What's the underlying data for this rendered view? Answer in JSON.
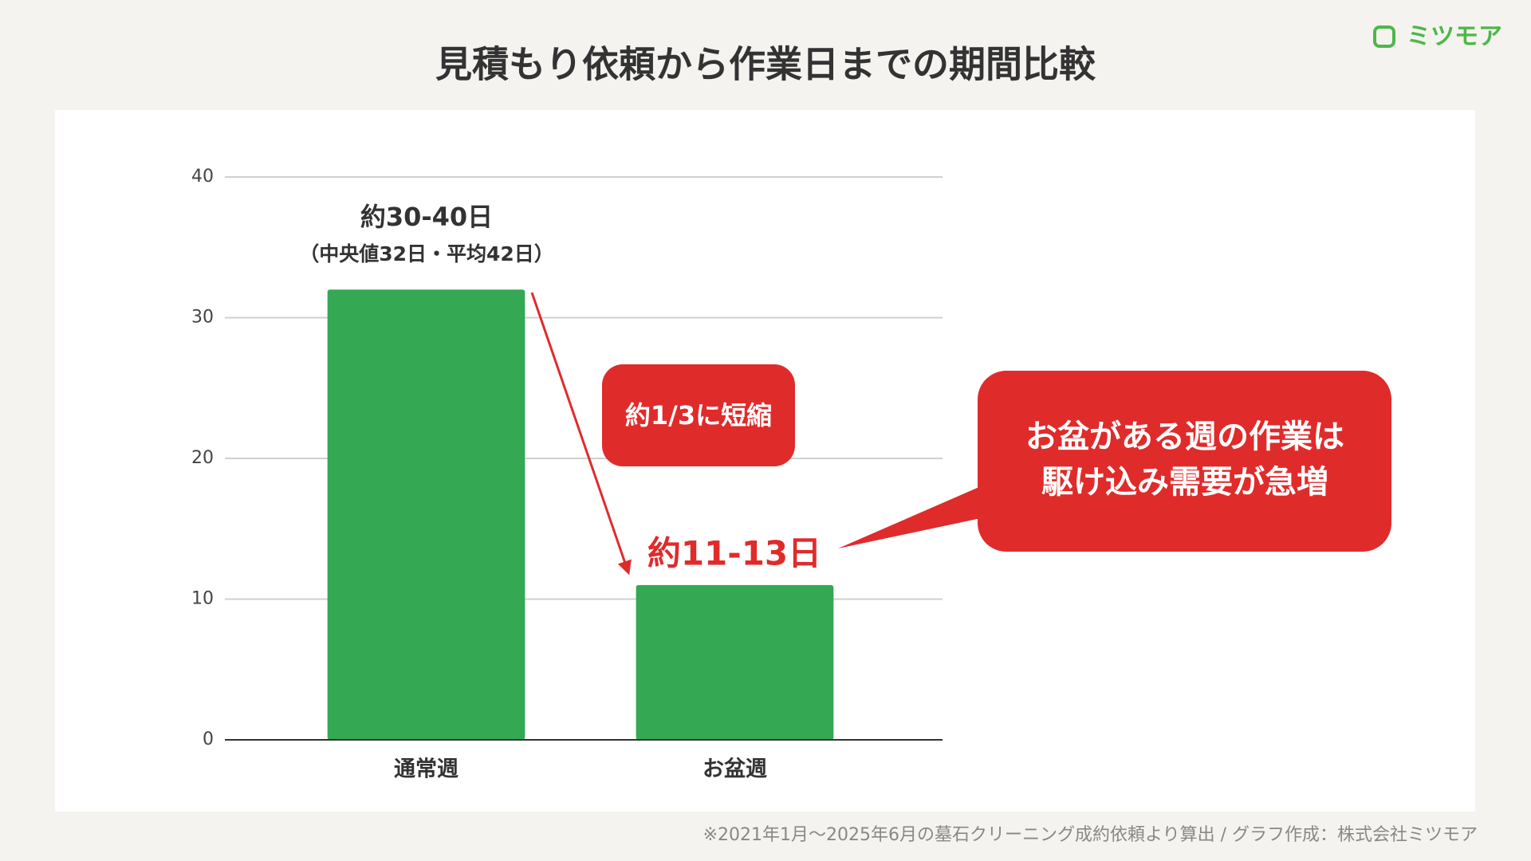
{
  "chart_data": {
    "type": "bar",
    "title": "見積もり依頼から作業日までの期間比較",
    "categories": [
      "通常週",
      "お盆週"
    ],
    "values": [
      32,
      11
    ],
    "color": "#34a853",
    "ylim": [
      0,
      40
    ],
    "yticks": [
      0,
      10,
      20,
      30,
      40
    ],
    "grid": true,
    "annotations": {
      "normal_range": "約30-40日",
      "normal_detail": "（中央値32日・平均42日）",
      "reduction": "約1/3に短縮",
      "obon_range": "約11-13日",
      "obon_note": [
        "お盆がある週の作業は",
        "駆け込み需要が急増"
      ]
    },
    "footnote": "※2021年1月〜2025年6月の墓石クリーニング成約依頼より算出 / グラフ作成：株式会社ミツモア",
    "logo": "ミツモア"
  }
}
